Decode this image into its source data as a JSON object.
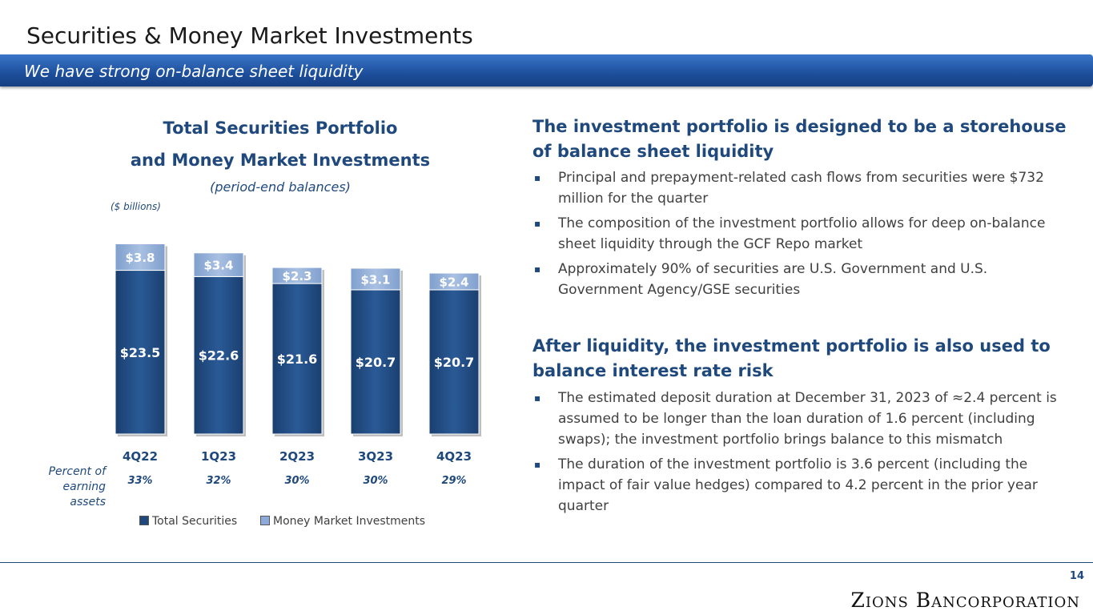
{
  "slide_title": "Securities & Money Market Investments",
  "banner_text": "We have strong on-balance sheet liquidity",
  "chart": {
    "title_line1": "Total Securities Portfolio",
    "title_line2": "and Money Market Investments",
    "subtitle": "(period-end balances)",
    "units": "($ billions)",
    "percent_label": "Percent of earning assets"
  },
  "chart_data": {
    "type": "bar",
    "stacked": true,
    "categories": [
      "4Q22",
      "1Q23",
      "2Q23",
      "3Q23",
      "4Q23"
    ],
    "series": [
      {
        "name": "Total Securities",
        "values": [
          23.5,
          22.6,
          21.6,
          20.7,
          20.7
        ],
        "labels": [
          "$23.5",
          "$22.6",
          "$21.6",
          "$20.7",
          "$20.7"
        ],
        "color": "#1f497d"
      },
      {
        "name": "Money Market Investments",
        "values": [
          3.8,
          3.4,
          2.3,
          3.1,
          2.4
        ],
        "labels": [
          "$3.8",
          "$3.4",
          "$2.3",
          "$3.1",
          "$2.4"
        ],
        "color": "#8eaadb"
      }
    ],
    "percent_of_earning_assets": [
      "33%",
      "32%",
      "30%",
      "30%",
      "29%"
    ],
    "legend_position": "bottom",
    "grid": false
  },
  "right_panel": {
    "section1": {
      "heading": "The investment portfolio is designed to be a storehouse of balance sheet liquidity",
      "bullets": [
        "Principal and prepayment-related cash flows from securities were $732 million for the quarter",
        "The composition of the investment portfolio allows for deep on-balance sheet liquidity through the GCF Repo market",
        "Approximately 90% of securities are U.S. Government and U.S. Government Agency/GSE securities"
      ]
    },
    "section2": {
      "heading": "After liquidity, the investment portfolio is also used to balance interest rate risk",
      "bullets": [
        "The estimated deposit duration at December 31, 2023 of ≈2.4 percent is assumed to be longer than the loan duration of 1.6 percent (including swaps); the investment portfolio brings balance to this mismatch",
        "The duration of the investment portfolio is 3.6 percent (including the impact of fair value hedges) compared to 4.2 percent in the prior year quarter"
      ]
    }
  },
  "page_number": "14",
  "logo_text": "Zions Bancorporation",
  "bullet_marker": "▪"
}
